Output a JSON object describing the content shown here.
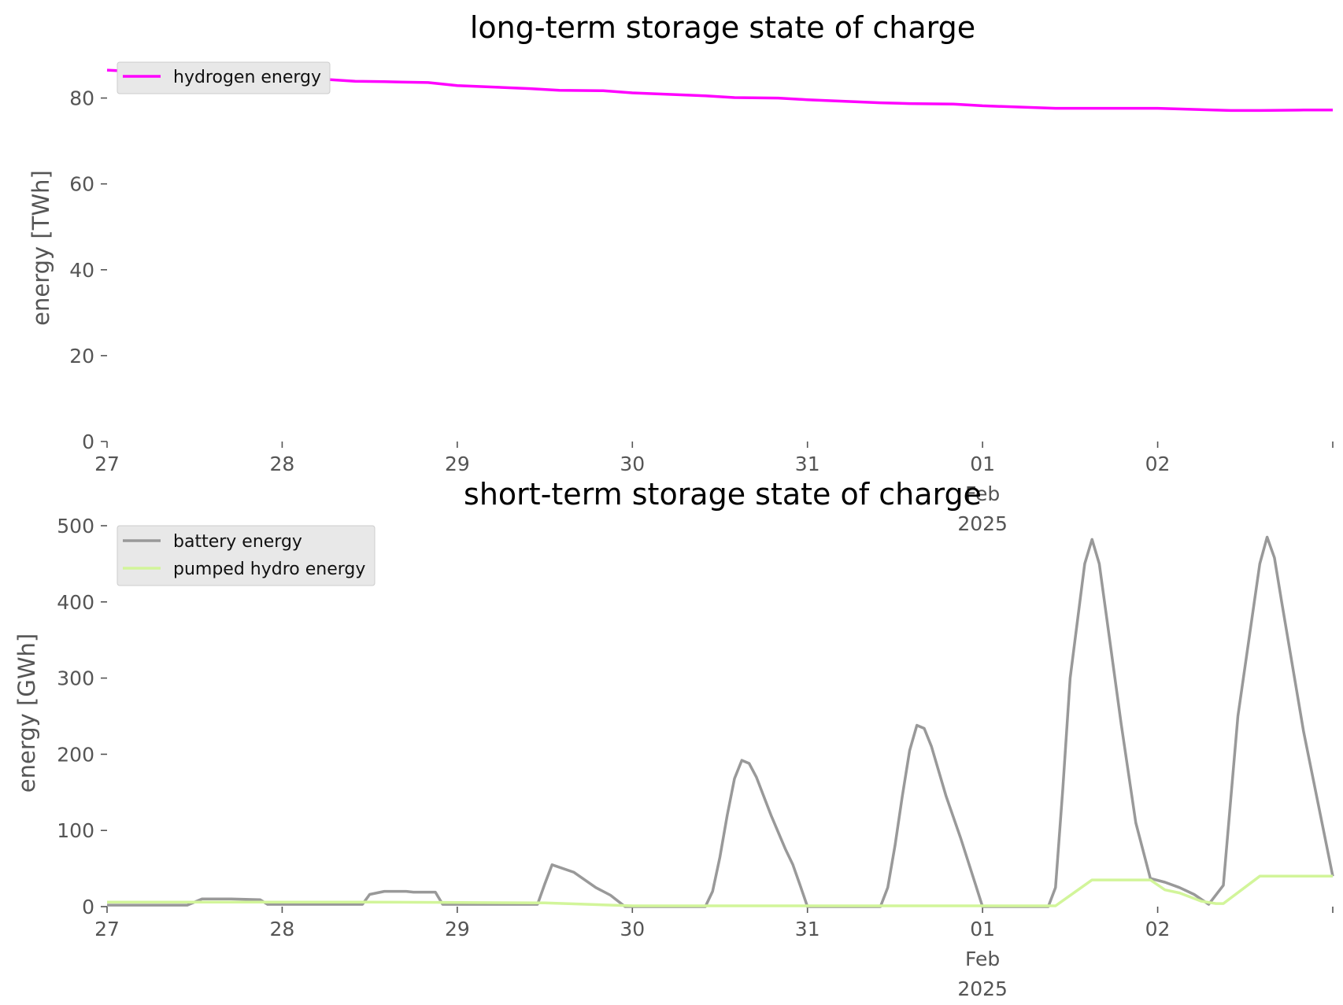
{
  "chart_data": [
    {
      "type": "line",
      "title": "long-term storage state of charge",
      "xlabel": "",
      "ylabel": "energy [TWh]",
      "x_range": [
        "2025-01-27",
        "2025-02-03"
      ],
      "ylim": [
        0,
        90
      ],
      "yticks": [
        "0",
        "20",
        "40",
        "60",
        "80"
      ],
      "xtick_labels": [
        {
          "day": "27",
          "month": "",
          "year": ""
        },
        {
          "day": "28",
          "month": "",
          "year": ""
        },
        {
          "day": "29",
          "month": "",
          "year": ""
        },
        {
          "day": "30",
          "month": "",
          "year": ""
        },
        {
          "day": "31",
          "month": "",
          "year": ""
        },
        {
          "day": "01",
          "month": "Feb",
          "year": "2025"
        },
        {
          "day": "02",
          "month": "",
          "year": ""
        }
      ],
      "grid": false,
      "legend_position": "upper-left",
      "series": [
        {
          "name": "hydrogen energy",
          "color": "#ff00ff",
          "points": [
            [
              "2025-01-27T00:00",
              86.5
            ],
            [
              "2025-01-27T12:00",
              85.5
            ],
            [
              "2025-01-28T00:00",
              85.0
            ],
            [
              "2025-01-28T10:00",
              83.9
            ],
            [
              "2025-01-28T14:00",
              83.8
            ],
            [
              "2025-01-28T20:00",
              83.6
            ],
            [
              "2025-01-29T00:00",
              82.9
            ],
            [
              "2025-01-29T10:00",
              82.2
            ],
            [
              "2025-01-29T14:00",
              81.8
            ],
            [
              "2025-01-29T20:00",
              81.7
            ],
            [
              "2025-01-30T00:00",
              81.2
            ],
            [
              "2025-01-30T10:00",
              80.5
            ],
            [
              "2025-01-30T14:00",
              80.1
            ],
            [
              "2025-01-30T20:00",
              80.0
            ],
            [
              "2025-01-31T00:00",
              79.6
            ],
            [
              "2025-01-31T10:00",
              78.9
            ],
            [
              "2025-01-31T14:00",
              78.7
            ],
            [
              "2025-01-31T20:00",
              78.6
            ],
            [
              "2025-02-01T00:00",
              78.2
            ],
            [
              "2025-02-01T10:00",
              77.6
            ],
            [
              "2025-02-01T14:00",
              77.6
            ],
            [
              "2025-02-01T20:00",
              77.6
            ],
            [
              "2025-02-02T00:00",
              77.6
            ],
            [
              "2025-02-02T10:00",
              77.1
            ],
            [
              "2025-02-02T14:00",
              77.1
            ],
            [
              "2025-02-02T20:00",
              77.2
            ],
            [
              "2025-02-03T00:00",
              77.2
            ]
          ]
        }
      ]
    },
    {
      "type": "line",
      "title": "short-term storage state of charge",
      "xlabel": "",
      "ylabel": "energy [GWh]",
      "x_range": [
        "2025-01-27",
        "2025-02-03"
      ],
      "ylim": [
        0,
        500
      ],
      "yticks": [
        "0",
        "100",
        "200",
        "300",
        "400",
        "500"
      ],
      "xtick_labels": [
        {
          "day": "27",
          "month": "",
          "year": ""
        },
        {
          "day": "28",
          "month": "",
          "year": ""
        },
        {
          "day": "29",
          "month": "",
          "year": ""
        },
        {
          "day": "30",
          "month": "",
          "year": ""
        },
        {
          "day": "31",
          "month": "",
          "year": ""
        },
        {
          "day": "01",
          "month": "Feb",
          "year": "2025"
        },
        {
          "day": "02",
          "month": "",
          "year": ""
        }
      ],
      "grid": false,
      "legend_position": "upper-left",
      "series": [
        {
          "name": "battery energy",
          "color": "#999999",
          "points": [
            [
              "2025-01-27T00:00",
              2
            ],
            [
              "2025-01-27T11:00",
              2
            ],
            [
              "2025-01-27T13:00",
              10
            ],
            [
              "2025-01-27T17:00",
              10
            ],
            [
              "2025-01-27T21:00",
              9
            ],
            [
              "2025-01-27T22:00",
              3
            ],
            [
              "2025-01-28T11:00",
              3
            ],
            [
              "2025-01-28T12:00",
              16
            ],
            [
              "2025-01-28T14:00",
              20
            ],
            [
              "2025-01-28T17:00",
              20
            ],
            [
              "2025-01-28T18:00",
              19
            ],
            [
              "2025-01-28T21:00",
              19
            ],
            [
              "2025-01-28T22:00",
              3
            ],
            [
              "2025-01-29T11:00",
              3
            ],
            [
              "2025-01-29T12:00",
              30
            ],
            [
              "2025-01-29T13:00",
              55
            ],
            [
              "2025-01-29T16:00",
              45
            ],
            [
              "2025-01-29T19:00",
              25
            ],
            [
              "2025-01-29T21:00",
              15
            ],
            [
              "2025-01-29T23:00",
              0
            ],
            [
              "2025-01-30T10:00",
              0
            ],
            [
              "2025-01-30T11:00",
              20
            ],
            [
              "2025-01-30T12:00",
              65
            ],
            [
              "2025-01-30T13:00",
              120
            ],
            [
              "2025-01-30T14:00",
              168
            ],
            [
              "2025-01-30T15:00",
              192
            ],
            [
              "2025-01-30T16:00",
              188
            ],
            [
              "2025-01-30T17:00",
              170
            ],
            [
              "2025-01-30T19:00",
              120
            ],
            [
              "2025-01-30T21:00",
              75
            ],
            [
              "2025-01-30T22:00",
              55
            ],
            [
              "2025-01-30T23:00",
              28
            ],
            [
              "2025-01-31T00:00",
              0
            ],
            [
              "2025-01-31T10:00",
              0
            ],
            [
              "2025-01-31T11:00",
              25
            ],
            [
              "2025-01-31T12:00",
              80
            ],
            [
              "2025-01-31T13:00",
              145
            ],
            [
              "2025-01-31T14:00",
              205
            ],
            [
              "2025-01-31T15:00",
              238
            ],
            [
              "2025-01-31T16:00",
              234
            ],
            [
              "2025-01-31T17:00",
              210
            ],
            [
              "2025-01-31T19:00",
              145
            ],
            [
              "2025-01-31T21:00",
              90
            ],
            [
              "2025-01-31T23:00",
              30
            ],
            [
              "2025-02-01T00:00",
              0
            ],
            [
              "2025-02-01T09:00",
              0
            ],
            [
              "2025-02-01T10:00",
              25
            ],
            [
              "2025-02-01T11:00",
              155
            ],
            [
              "2025-02-01T12:00",
              300
            ],
            [
              "2025-02-01T14:00",
              450
            ],
            [
              "2025-02-01T15:00",
              482
            ],
            [
              "2025-02-01T16:00",
              450
            ],
            [
              "2025-02-01T17:00",
              380
            ],
            [
              "2025-02-01T19:00",
              240
            ],
            [
              "2025-02-01T21:00",
              110
            ],
            [
              "2025-02-01T23:00",
              37
            ],
            [
              "2025-02-02T01:00",
              32
            ],
            [
              "2025-02-02T03:00",
              25
            ],
            [
              "2025-02-02T05:00",
              16
            ],
            [
              "2025-02-02T07:00",
              3
            ],
            [
              "2025-02-02T09:00",
              28
            ],
            [
              "2025-02-02T11:00",
              250
            ],
            [
              "2025-02-02T14:00",
              450
            ],
            [
              "2025-02-02T15:00",
              485
            ],
            [
              "2025-02-02T16:00",
              458
            ],
            [
              "2025-02-02T17:00",
              400
            ],
            [
              "2025-02-02T20:00",
              230
            ],
            [
              "2025-02-03T00:00",
              40
            ]
          ]
        },
        {
          "name": "pumped hydro energy",
          "color": "#d2f59a",
          "points": [
            [
              "2025-01-27T00:00",
              6
            ],
            [
              "2025-01-28T12:00",
              6
            ],
            [
              "2025-01-29T12:00",
              5
            ],
            [
              "2025-01-30T00:00",
              1
            ],
            [
              "2025-02-01T00:00",
              1
            ],
            [
              "2025-02-01T10:00",
              1
            ],
            [
              "2025-02-01T15:00",
              35
            ],
            [
              "2025-02-01T23:00",
              35
            ],
            [
              "2025-02-02T01:00",
              22
            ],
            [
              "2025-02-02T03:00",
              18
            ],
            [
              "2025-02-02T06:00",
              7
            ],
            [
              "2025-02-02T08:00",
              4
            ],
            [
              "2025-02-02T09:00",
              4
            ],
            [
              "2025-02-02T14:00",
              40
            ],
            [
              "2025-02-03T00:00",
              40
            ]
          ]
        }
      ]
    }
  ]
}
